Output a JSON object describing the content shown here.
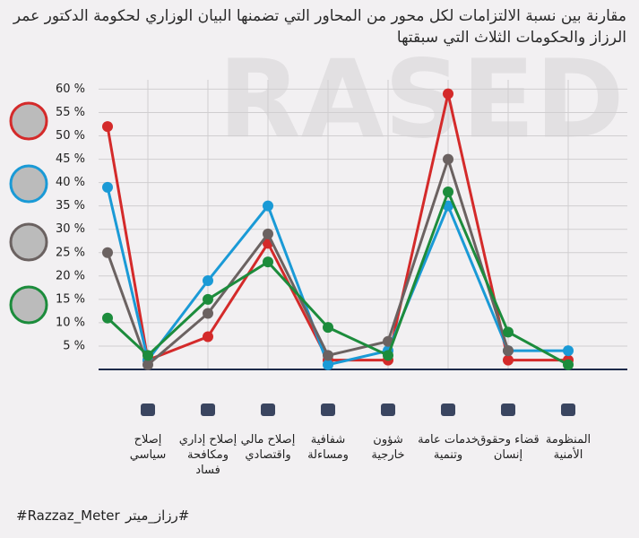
{
  "title": "مقارنة بين نسبة الالتزامات لكل محور من المحاور التي تضمنها البيان الوزاري لحكومة الدكتور عمر الرزاز والحكومات الثلاث التي سبقتها",
  "watermark": "RASED",
  "footer": {
    "left": "#Razzaz_Meter",
    "right": "#رزاز_ميتر"
  },
  "chart_data": {
    "type": "line",
    "categories": [
      null,
      "إصلاح سياسي",
      "إصلاح إداري ومكافحة فساد",
      "إصلاح مالي واقتصادي",
      "شفافية ومساءلة",
      "شؤون خارجية",
      "خدمات عامة وتنمية",
      "قضاء وحقوق إنسان",
      "المنظومة الأمنية"
    ],
    "series": [
      {
        "color": "#d42a2a",
        "values": [
          52,
          2,
          7,
          27,
          2,
          2,
          59,
          2,
          2
        ]
      },
      {
        "color": "#1a9ad6",
        "values": [
          39,
          2,
          19,
          35,
          1,
          4,
          35,
          4,
          4
        ]
      },
      {
        "color": "#6b6261",
        "values": [
          25,
          1,
          12,
          29,
          3,
          6,
          45,
          4,
          null
        ]
      },
      {
        "color": "#1c8c3c",
        "values": [
          11,
          3,
          15,
          23,
          9,
          3,
          38,
          8,
          1
        ]
      }
    ],
    "ylim": [
      0,
      62
    ],
    "yticks": [
      {
        "value": 5,
        "label": "5 %"
      },
      {
        "value": 10,
        "label": "10 %"
      },
      {
        "value": 15,
        "label": "15 %"
      },
      {
        "value": 20,
        "label": "20 %"
      },
      {
        "value": 25,
        "label": "25 %"
      },
      {
        "value": 30,
        "label": "30 %"
      },
      {
        "value": 35,
        "label": "35 %"
      },
      {
        "value": 40,
        "label": "40 %"
      },
      {
        "value": 45,
        "label": "45 %"
      },
      {
        "value": 50,
        "label": "50 %"
      },
      {
        "value": 55,
        "label": "55 %"
      },
      {
        "value": 60,
        "label": "60 %"
      }
    ],
    "grid": true
  }
}
